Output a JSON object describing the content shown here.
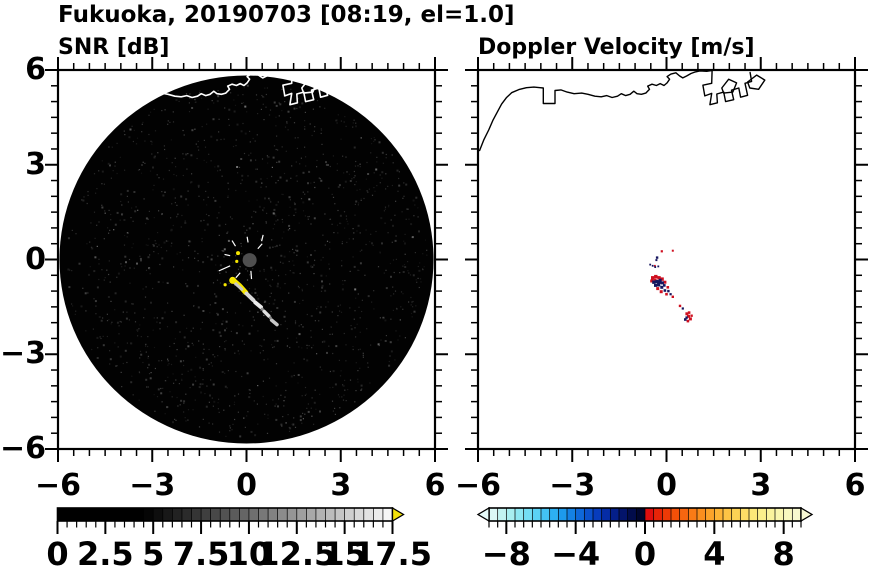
{
  "figure": {
    "title": "Fukuoka, 20190703 [08:19, el=1.0]",
    "background": "#ffffff",
    "text_color": "#000000"
  },
  "chart_data": {
    "type": "heatmap",
    "title": "Fukuoka, 20190703 [08:19, el=1.0]",
    "station": "Fukuoka",
    "date": "20190703",
    "time": "08:19",
    "elevation": "1.0",
    "layout": "two radar PPI panels side by side, shared y axis, horizontal colorbar under each panel",
    "axes": {
      "xlim": [
        -6,
        6
      ],
      "ylim": [
        -6,
        6
      ],
      "x_tick_values": [
        -6,
        -3,
        0,
        3,
        6
      ],
      "x_tick_labels": [
        "−6",
        "−3",
        "0",
        "3",
        "6"
      ],
      "y_tick_values": [
        6,
        3,
        0,
        -3,
        -6
      ],
      "y_tick_labels": [
        "6",
        "3",
        "0",
        "−3",
        "−6"
      ],
      "minor_tick_step": 0.5,
      "grid": false
    },
    "panels": [
      {
        "key": "snr",
        "title": "SNR [dB]",
        "background": "#ffffff",
        "scan_disk": {
          "center": [
            0,
            0
          ],
          "radius": 5.9,
          "fill": "#020202",
          "noise": true
        },
        "coast_color": "#ffffff",
        "radar_center_marker": {
          "x": 0.1,
          "y": -0.02,
          "radius_px": 7,
          "color": "#4f4f4f"
        },
        "center_spokes": [
          [
            [
              -0.52,
              -0.2
            ],
            [
              -0.88,
              -0.36
            ]
          ],
          [
            [
              0.48,
              0.58
            ],
            [
              0.53,
              0.78
            ]
          ],
          [
            [
              -0.35,
              0.42
            ],
            [
              -0.46,
              0.6
            ]
          ],
          [
            [
              0.14,
              -0.36
            ],
            [
              0.16,
              -0.62
            ]
          ],
          [
            [
              0.36,
              0.34
            ],
            [
              0.5,
              0.5
            ]
          ],
          [
            [
              -0.2,
              -0.42
            ],
            [
              -0.34,
              -0.58
            ]
          ],
          [
            [
              0.05,
              0.54
            ],
            [
              0.02,
              0.72
            ]
          ],
          [
            [
              -0.52,
              0.12
            ],
            [
              -0.7,
              0.16
            ]
          ]
        ],
        "echo_lines": [
          {
            "c": "#f6e600",
            "w": 5,
            "p": [
              [
                -0.45,
                -0.63
              ],
              [
                -0.22,
                -0.83
              ],
              [
                -0.02,
                -1.05
              ]
            ]
          },
          {
            "c": "#c8c8c8",
            "w": 3,
            "p": [
              [
                -0.38,
                -0.74
              ],
              [
                -0.15,
                -0.94
              ]
            ]
          },
          {
            "c": "#d9d9d9",
            "w": 4,
            "p": [
              [
                0.0,
                -1.08
              ],
              [
                0.22,
                -1.29
              ]
            ]
          },
          {
            "c": "#ececec",
            "w": 4,
            "p": [
              [
                0.28,
                -1.36
              ],
              [
                0.46,
                -1.51
              ]
            ]
          },
          {
            "c": "#dedede",
            "w": 3.5,
            "p": [
              [
                0.56,
                -1.64
              ],
              [
                0.71,
                -1.79
              ]
            ]
          },
          {
            "c": "#c9c9c9",
            "w": 3.5,
            "p": [
              [
                0.8,
                -1.92
              ],
              [
                0.97,
                -2.06
              ]
            ]
          }
        ],
        "echo_dots": [
          {
            "x": -0.44,
            "y": -0.66,
            "r": 3.5,
            "c": "#f6e600"
          },
          {
            "x": -0.68,
            "y": -0.8,
            "r": 1.6,
            "c": "#f6e600"
          },
          {
            "x": -0.27,
            "y": 0.2,
            "r": 2.0,
            "c": "#f6e600"
          },
          {
            "x": -0.31,
            "y": -0.06,
            "r": 1.6,
            "c": "#f6e600"
          },
          {
            "x": 0.5,
            "y": -1.57,
            "r": 1.5,
            "c": "#909090"
          },
          {
            "x": 0.76,
            "y": -1.85,
            "r": 1.5,
            "c": "#8a8a8a"
          }
        ],
        "colorbar": {
          "min": 0,
          "max": 17.5,
          "segment": 0.5,
          "tick_values": [
            0,
            2.5,
            5,
            7.5,
            10,
            12.5,
            15,
            17.5
          ],
          "tick_labels": [
            "0",
            "2.5",
            "5",
            "7.5",
            "10",
            "12.5",
            "15",
            "17.5"
          ],
          "colors": [
            "#000000",
            "#000000",
            "#000000",
            "#000000",
            "#000000",
            "#000000",
            "#000000",
            "#000000",
            "#000000",
            "#050505",
            "#0e0e0e",
            "#181818",
            "#222222",
            "#2b2b2b",
            "#353535",
            "#3f3f3f",
            "#484848",
            "#525252",
            "#5b5b5b",
            "#656565",
            "#6f6f6f",
            "#787878",
            "#828282",
            "#8c8c8c",
            "#959595",
            "#9f9f9f",
            "#a8a8a8",
            "#b2b2b2",
            "#bcbcbc",
            "#c5c5c5",
            "#cfcfcf",
            "#d9d9d9",
            "#e2e2e2",
            "#ececec",
            "#f5f5f5"
          ],
          "over_color": "#f2e10c",
          "arrow_left": false,
          "arrow_right": true
        }
      },
      {
        "key": "velocity",
        "title": "Doppler Velocity [m/s]",
        "background": "#ffffff",
        "coast_color": "#000000",
        "echo_squares": {
          "red": {
            "color": "#cf1020",
            "cells": [
              [
                -0.44,
                -0.58,
                3.4
              ],
              [
                -0.34,
                -0.54,
                3.4
              ],
              [
                -0.24,
                -0.58,
                3.4
              ],
              [
                -0.14,
                -0.62,
                3.4
              ],
              [
                -0.37,
                -0.66,
                3.4
              ],
              [
                -0.05,
                -0.72,
                3
              ],
              [
                -0.28,
                -0.92,
                3
              ],
              [
                -0.17,
                -1.02,
                3
              ],
              [
                0.04,
                -0.88,
                2.6
              ],
              [
                0.0,
                -1.1,
                2.6
              ],
              [
                -0.47,
                -0.68,
                3
              ],
              [
                0.2,
                -1.18,
                2.4
              ],
              [
                0.43,
                -1.47,
                2.4
              ],
              [
                0.65,
                -1.72,
                3
              ],
              [
                0.72,
                -1.68,
                2.6
              ],
              [
                0.7,
                -1.8,
                3
              ],
              [
                0.76,
                -1.88,
                3
              ],
              [
                0.68,
                -1.95,
                2.6
              ],
              [
                0.8,
                -1.78,
                2.4
              ],
              [
                -0.15,
                0.26,
                2.2
              ],
              [
                0.2,
                0.28,
                2
              ],
              [
                -0.37,
                -0.2,
                1.8
              ]
            ]
          },
          "navy": {
            "color": "#15155e",
            "cells": [
              [
                -0.4,
                -0.72,
                3.4
              ],
              [
                -0.3,
                -0.7,
                3.4
              ],
              [
                -0.22,
                -0.72,
                3.4
              ],
              [
                -0.13,
                -0.74,
                3
              ],
              [
                -0.25,
                -0.8,
                3.4
              ],
              [
                -0.35,
                -0.82,
                3
              ],
              [
                -0.15,
                -0.88,
                3
              ],
              [
                -0.07,
                -0.82,
                2.6
              ],
              [
                -0.05,
                -0.98,
                2.6
              ],
              [
                0.06,
                -1.0,
                2.4
              ],
              [
                -0.2,
                -0.66,
                3
              ],
              [
                0.13,
                -1.1,
                2.2
              ],
              [
                0.52,
                -1.55,
                2.2
              ],
              [
                0.6,
                -1.9,
                2.6
              ],
              [
                0.64,
                -1.84,
                2.4
              ],
              [
                -0.3,
                0.06,
                2.4
              ],
              [
                -0.32,
                -0.02,
                2
              ],
              [
                -0.52,
                -0.16,
                1.8
              ],
              [
                -0.44,
                -0.2,
                1.8
              ],
              [
                -0.36,
                -0.24,
                1.8
              ],
              [
                -0.26,
                -0.22,
                1.8
              ]
            ]
          }
        },
        "colorbar": {
          "min": -9,
          "max": 9,
          "segment": 0.5,
          "tick_values": [
            -8,
            -4,
            0,
            4,
            8
          ],
          "tick_labels": [
            "−8",
            "−4",
            "0",
            "4",
            "8"
          ],
          "colors": [
            "#dcf8f6",
            "#c2f3f1",
            "#a8eef0",
            "#8ee7f2",
            "#74def4",
            "#5bd2f5",
            "#43c3f5",
            "#2db0f2",
            "#1d9aec",
            "#1481e4",
            "#0e68da",
            "#0a51cd",
            "#073cbc",
            "#052ca6",
            "#041f8a",
            "#03146b",
            "#020c4b",
            "#01062e",
            "#df0e0e",
            "#e72408",
            "#ee3a06",
            "#f35008",
            "#f76610",
            "#fa7b16",
            "#fb8f1e",
            "#fca32a",
            "#fdb436",
            "#fdc445",
            "#fdd254",
            "#fdde66",
            "#fce878",
            "#fbef8b",
            "#faf39d",
            "#f9f6ae",
            "#f8f8bf",
            "#f7f8ce"
          ],
          "under_color": "#e6fbfa",
          "over_color": "#f7f8d4",
          "arrow_left": true,
          "arrow_right": true
        }
      }
    ],
    "coastline_km": {
      "main": [
        [
          -5.95,
          3.45
        ],
        [
          -5.82,
          3.78
        ],
        [
          -5.66,
          4.1
        ],
        [
          -5.52,
          4.42
        ],
        [
          -5.38,
          4.68
        ],
        [
          -5.25,
          4.92
        ],
        [
          -5.1,
          5.12
        ],
        [
          -4.93,
          5.28
        ],
        [
          -4.7,
          5.38
        ],
        [
          -4.46,
          5.44
        ],
        [
          -4.22,
          5.46
        ],
        [
          -4.02,
          5.44
        ],
        [
          -3.92,
          5.43
        ],
        [
          -3.92,
          4.94
        ],
        [
          -3.55,
          4.94
        ],
        [
          -3.55,
          5.35
        ],
        [
          -3.36,
          5.37
        ],
        [
          -3.16,
          5.3
        ],
        [
          -2.94,
          5.25
        ],
        [
          -2.7,
          5.27
        ],
        [
          -2.5,
          5.23
        ],
        [
          -2.28,
          5.17
        ],
        [
          -2.08,
          5.15
        ],
        [
          -1.9,
          5.19
        ],
        [
          -1.73,
          5.13
        ],
        [
          -1.56,
          5.17
        ],
        [
          -1.44,
          5.25
        ],
        [
          -1.3,
          5.19
        ],
        [
          -1.16,
          5.23
        ],
        [
          -1.04,
          5.33
        ],
        [
          -0.94,
          5.25
        ],
        [
          -0.8,
          5.23
        ],
        [
          -0.66,
          5.27
        ],
        [
          -0.54,
          5.39
        ],
        [
          -0.6,
          5.49
        ],
        [
          -0.46,
          5.55
        ],
        [
          -0.32,
          5.51
        ],
        [
          -0.2,
          5.57
        ],
        [
          -0.08,
          5.51
        ],
        [
          0.02,
          5.59
        ],
        [
          0.1,
          5.71
        ],
        [
          0.02,
          5.79
        ],
        [
          0.14,
          5.87
        ],
        [
          0.3,
          5.91
        ],
        [
          0.42,
          5.81
        ],
        [
          0.52,
          5.75
        ],
        [
          0.64,
          5.81
        ],
        [
          0.78,
          5.89
        ],
        [
          0.92,
          5.94
        ],
        [
          1.06,
          5.97
        ],
        [
          1.28,
          5.96
        ],
        [
          1.44,
          5.98
        ]
      ],
      "harbor_comb": [
        [
          1.45,
          5.98
        ],
        [
          1.44,
          5.58
        ],
        [
          1.16,
          5.52
        ],
        [
          1.22,
          5.18
        ],
        [
          1.44,
          5.26
        ],
        [
          1.38,
          4.9
        ],
        [
          1.62,
          4.96
        ],
        [
          1.6,
          5.24
        ],
        [
          1.82,
          5.3
        ],
        [
          1.88,
          5.0
        ],
        [
          2.14,
          5.06
        ],
        [
          2.07,
          5.36
        ],
        [
          2.3,
          5.43
        ],
        [
          2.36,
          5.14
        ],
        [
          2.58,
          5.2
        ],
        [
          2.5,
          5.58
        ],
        [
          2.71,
          5.64
        ],
        [
          2.66,
          5.92
        ]
      ],
      "harbor_block_1": [
        [
          1.76,
          5.43
        ],
        [
          1.98,
          5.71
        ],
        [
          2.23,
          5.59
        ],
        [
          2.11,
          5.3
        ],
        [
          1.82,
          5.27
        ],
        [
          1.76,
          5.43
        ]
      ],
      "harbor_block_2": [
        [
          2.58,
          5.62
        ],
        [
          2.87,
          5.84
        ],
        [
          3.13,
          5.68
        ],
        [
          2.93,
          5.39
        ],
        [
          2.65,
          5.43
        ],
        [
          2.58,
          5.62
        ]
      ]
    }
  }
}
